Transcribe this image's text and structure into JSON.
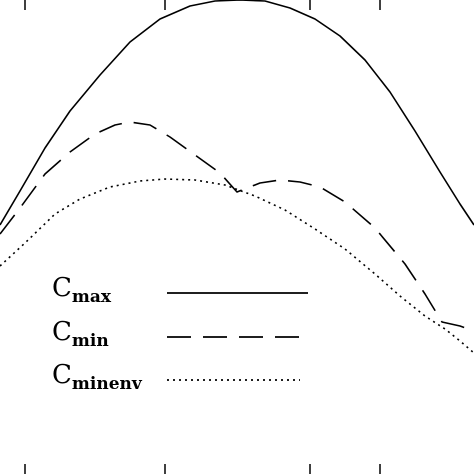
{
  "chart_data": {
    "type": "line",
    "title": "",
    "xlabel": "",
    "ylabel": "",
    "xlim": [
      0,
      474
    ],
    "ylim": [
      0,
      474
    ],
    "x_ticks": [
      25,
      165,
      310,
      380
    ],
    "grid": false,
    "legend_placement": "lower-left",
    "series": [
      {
        "name_main": "C",
        "name_sub": "max",
        "style": "solid",
        "color": "#000000",
        "points": [
          [
            0,
            249
          ],
          [
            20,
            283
          ],
          [
            45,
            326
          ],
          [
            70,
            363
          ],
          [
            100,
            399
          ],
          [
            130,
            432
          ],
          [
            160,
            455
          ],
          [
            190,
            468
          ],
          [
            215,
            473
          ],
          [
            240,
            474
          ],
          [
            265,
            473
          ],
          [
            290,
            466
          ],
          [
            315,
            455
          ],
          [
            340,
            438
          ],
          [
            365,
            414
          ],
          [
            390,
            382
          ],
          [
            415,
            343
          ],
          [
            440,
            302
          ],
          [
            460,
            270
          ],
          [
            474,
            249
          ]
        ]
      },
      {
        "name_main": "C",
        "name_sub": "min",
        "style": "dashed",
        "color": "#000000",
        "points": [
          [
            0,
            240
          ],
          [
            20,
            266
          ],
          [
            45,
            300
          ],
          [
            70,
            322
          ],
          [
            95,
            340
          ],
          [
            115,
            349
          ],
          [
            130,
            352
          ],
          [
            150,
            349
          ],
          [
            170,
            337
          ],
          [
            195,
            319
          ],
          [
            220,
            301
          ],
          [
            237,
            282
          ],
          [
            260,
            291
          ],
          [
            280,
            294
          ],
          [
            300,
            292
          ],
          [
            320,
            287
          ],
          [
            345,
            272
          ],
          [
            375,
            246
          ],
          [
            405,
            210
          ],
          [
            425,
            180
          ],
          [
            442,
            152
          ],
          [
            460,
            148
          ],
          [
            474,
            143
          ]
        ]
      },
      {
        "name_main": "C",
        "name_sub": "minenv",
        "style": "dotted",
        "color": "#000000",
        "points": [
          [
            0,
            208
          ],
          [
            25,
            231
          ],
          [
            55,
            260
          ],
          [
            80,
            275
          ],
          [
            110,
            287
          ],
          [
            140,
            293
          ],
          [
            165,
            295
          ],
          [
            195,
            294
          ],
          [
            225,
            289
          ],
          [
            255,
            278
          ],
          [
            285,
            264
          ],
          [
            315,
            245
          ],
          [
            345,
            225
          ],
          [
            375,
            200
          ],
          [
            400,
            178
          ],
          [
            425,
            158
          ],
          [
            445,
            145
          ],
          [
            460,
            133
          ],
          [
            474,
            121
          ]
        ]
      }
    ]
  }
}
